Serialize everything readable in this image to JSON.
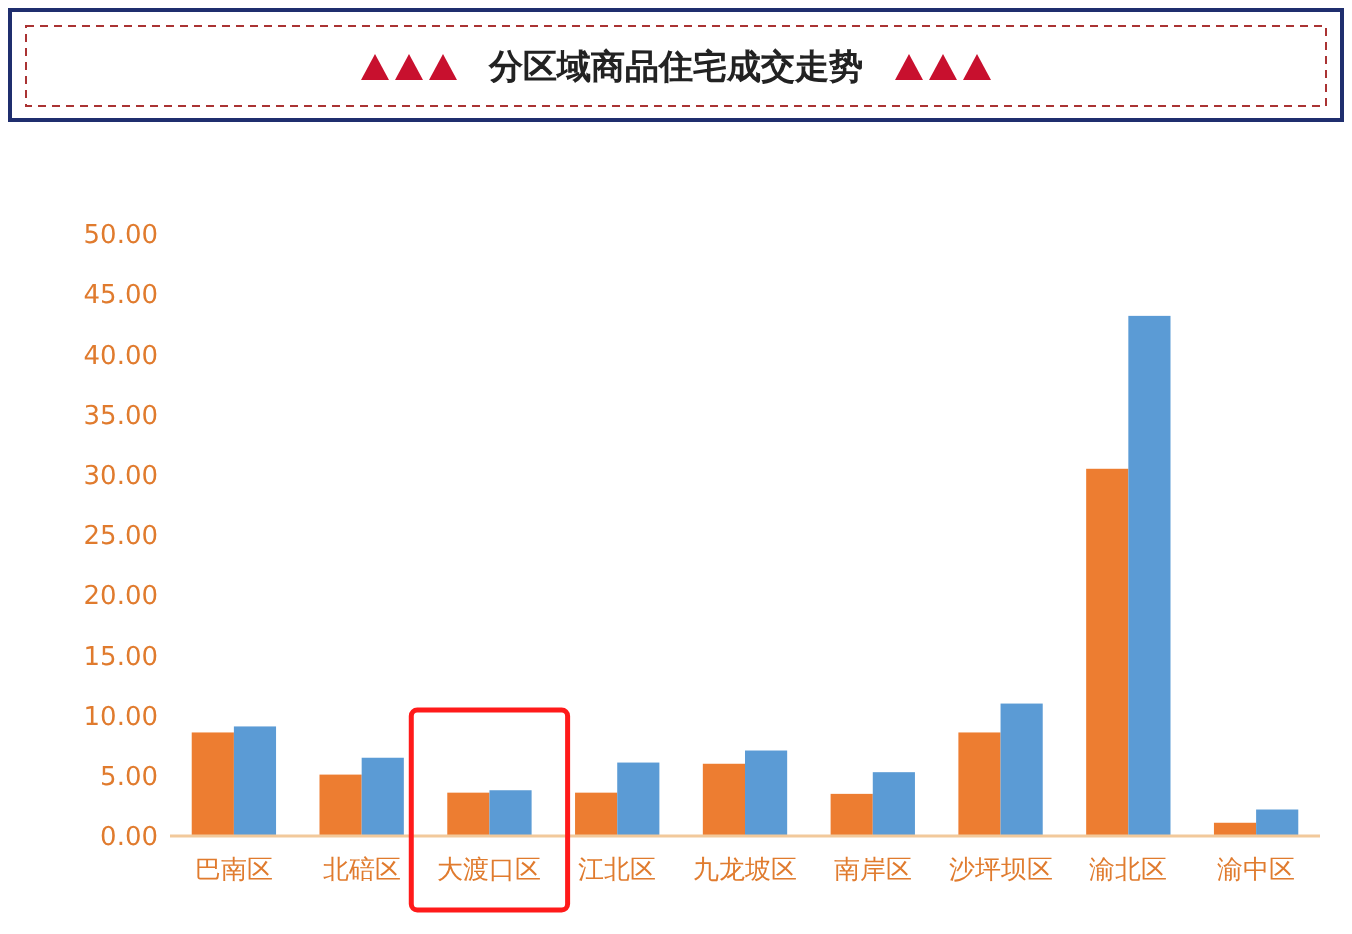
{
  "chart_data": {
    "type": "bar",
    "title": "分区域商品住宅成交走势",
    "categories": [
      "巴南区",
      "北碚区",
      "大渡口区",
      "江北区",
      "九龙坡区",
      "南岸区",
      "沙坪坝区",
      "渝北区",
      "渝中区"
    ],
    "series": [
      {
        "color": "#ed7d31",
        "values": [
          8.6,
          5.1,
          3.6,
          3.6,
          6.0,
          3.5,
          8.6,
          30.5,
          1.1
        ]
      },
      {
        "color": "#5b9bd5",
        "values": [
          9.1,
          6.5,
          3.8,
          6.1,
          7.1,
          5.3,
          11.0,
          43.2,
          2.2
        ]
      }
    ],
    "ylim": [
      0,
      50
    ],
    "yticks": [
      {
        "value": 0,
        "label": "0.00"
      },
      {
        "value": 5,
        "label": "5.00"
      },
      {
        "value": 10,
        "label": "10.00"
      },
      {
        "value": 15,
        "label": "15.00"
      },
      {
        "value": 20,
        "label": "20.00"
      },
      {
        "value": 25,
        "label": "25.00"
      },
      {
        "value": 30,
        "label": "30.00"
      },
      {
        "value": 35,
        "label": "35.00"
      },
      {
        "value": 40,
        "label": "40.00"
      },
      {
        "value": 45,
        "label": "45.00"
      },
      {
        "value": 50,
        "label": "50.00"
      }
    ],
    "grid": false
  }
}
